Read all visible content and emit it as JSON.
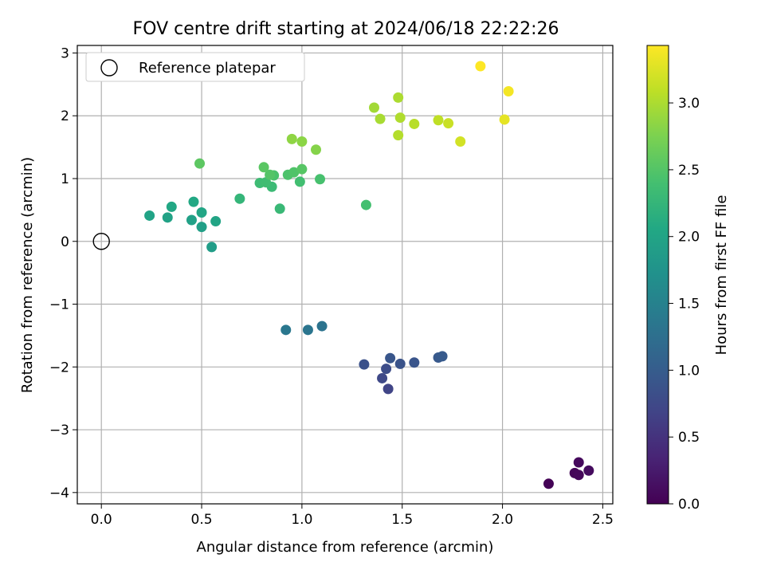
{
  "chart_data": {
    "type": "scatter",
    "title": "FOV centre drift starting at 2024/06/18 22:22:26",
    "xlabel": "Angular distance from reference (arcmin)",
    "ylabel": "Rotation from reference (arcmin)",
    "xlim": [
      -0.12,
      2.55
    ],
    "ylim": [
      -4.18,
      3.12
    ],
    "xticks": [
      0.0,
      0.5,
      1.0,
      1.5,
      2.0,
      2.5
    ],
    "xtick_labels": [
      "0.0",
      "0.5",
      "1.0",
      "1.5",
      "2.0",
      "2.5"
    ],
    "yticks": [
      -4,
      -3,
      -2,
      -1,
      0,
      1,
      2,
      3
    ],
    "ytick_labels": [
      "−4",
      "−3",
      "−2",
      "−1",
      "0",
      "1",
      "2",
      "3"
    ],
    "grid": true,
    "legend": {
      "position": "top-left",
      "entries": [
        "Reference platepar"
      ]
    },
    "reference_point": {
      "x": 0.0,
      "y": 0.0,
      "label": "Reference platepar",
      "marker": "open-circle"
    },
    "colorbar": {
      "label": "Hours from first FF file",
      "colormap": "viridis",
      "range": [
        0.0,
        3.43
      ],
      "ticks": [
        0.0,
        0.5,
        1.0,
        1.5,
        2.0,
        2.5,
        3.0
      ],
      "tick_labels": [
        "0.0",
        "0.5",
        "1.0",
        "1.5",
        "2.0",
        "2.5",
        "3.0"
      ]
    },
    "points": [
      {
        "x": 2.23,
        "y": -3.86,
        "c": 0.02
      },
      {
        "x": 2.36,
        "y": -3.69,
        "c": 0.04
      },
      {
        "x": 2.38,
        "y": -3.72,
        "c": 0.06
      },
      {
        "x": 2.38,
        "y": -3.52,
        "c": 0.08
      },
      {
        "x": 2.43,
        "y": -3.65,
        "c": 0.1
      },
      {
        "x": 1.43,
        "y": -2.35,
        "c": 0.7
      },
      {
        "x": 1.4,
        "y": -2.18,
        "c": 0.75
      },
      {
        "x": 1.42,
        "y": -2.03,
        "c": 0.8
      },
      {
        "x": 1.31,
        "y": -1.96,
        "c": 0.85
      },
      {
        "x": 1.49,
        "y": -1.95,
        "c": 0.88
      },
      {
        "x": 1.56,
        "y": -1.93,
        "c": 0.9
      },
      {
        "x": 1.44,
        "y": -1.86,
        "c": 0.92
      },
      {
        "x": 1.68,
        "y": -1.85,
        "c": 0.95
      },
      {
        "x": 1.7,
        "y": -1.83,
        "c": 0.97
      },
      {
        "x": 1.1,
        "y": -1.35,
        "c": 1.3
      },
      {
        "x": 1.03,
        "y": -1.41,
        "c": 1.33
      },
      {
        "x": 0.92,
        "y": -1.41,
        "c": 1.36
      },
      {
        "x": 0.55,
        "y": -0.09,
        "c": 1.9
      },
      {
        "x": 0.5,
        "y": 0.23,
        "c": 1.93
      },
      {
        "x": 0.45,
        "y": 0.34,
        "c": 1.95
      },
      {
        "x": 0.33,
        "y": 0.38,
        "c": 1.97
      },
      {
        "x": 0.24,
        "y": 0.41,
        "c": 1.99
      },
      {
        "x": 0.57,
        "y": 0.32,
        "c": 2.0
      },
      {
        "x": 0.5,
        "y": 0.46,
        "c": 2.02
      },
      {
        "x": 0.35,
        "y": 0.55,
        "c": 2.04
      },
      {
        "x": 0.46,
        "y": 0.63,
        "c": 2.06
      },
      {
        "x": 0.69,
        "y": 0.68,
        "c": 2.25
      },
      {
        "x": 0.89,
        "y": 0.52,
        "c": 2.3
      },
      {
        "x": 0.85,
        "y": 0.87,
        "c": 2.32
      },
      {
        "x": 0.79,
        "y": 0.93,
        "c": 2.34
      },
      {
        "x": 0.82,
        "y": 0.94,
        "c": 2.36
      },
      {
        "x": 0.99,
        "y": 0.95,
        "c": 2.38
      },
      {
        "x": 1.32,
        "y": 0.58,
        "c": 2.4
      },
      {
        "x": 1.09,
        "y": 0.99,
        "c": 2.42
      },
      {
        "x": 0.86,
        "y": 1.05,
        "c": 2.44
      },
      {
        "x": 0.93,
        "y": 1.06,
        "c": 2.46
      },
      {
        "x": 0.96,
        "y": 1.1,
        "c": 2.48
      },
      {
        "x": 0.84,
        "y": 1.06,
        "c": 2.5
      },
      {
        "x": 1.0,
        "y": 1.15,
        "c": 2.52
      },
      {
        "x": 0.81,
        "y": 1.18,
        "c": 2.54
      },
      {
        "x": 0.49,
        "y": 1.24,
        "c": 2.56
      },
      {
        "x": 1.07,
        "y": 1.46,
        "c": 2.8
      },
      {
        "x": 1.0,
        "y": 1.59,
        "c": 2.83
      },
      {
        "x": 0.95,
        "y": 1.63,
        "c": 2.85
      },
      {
        "x": 1.36,
        "y": 2.13,
        "c": 2.95
      },
      {
        "x": 1.39,
        "y": 1.95,
        "c": 2.98
      },
      {
        "x": 1.48,
        "y": 2.29,
        "c": 3.0
      },
      {
        "x": 1.49,
        "y": 1.97,
        "c": 3.02
      },
      {
        "x": 1.48,
        "y": 1.69,
        "c": 3.04
      },
      {
        "x": 1.56,
        "y": 1.87,
        "c": 3.06
      },
      {
        "x": 1.68,
        "y": 1.93,
        "c": 3.1
      },
      {
        "x": 1.73,
        "y": 1.88,
        "c": 3.15
      },
      {
        "x": 1.79,
        "y": 1.59,
        "c": 3.2
      },
      {
        "x": 2.01,
        "y": 1.94,
        "c": 3.3
      },
      {
        "x": 2.03,
        "y": 2.39,
        "c": 3.38
      },
      {
        "x": 1.89,
        "y": 2.79,
        "c": 3.43
      }
    ]
  }
}
